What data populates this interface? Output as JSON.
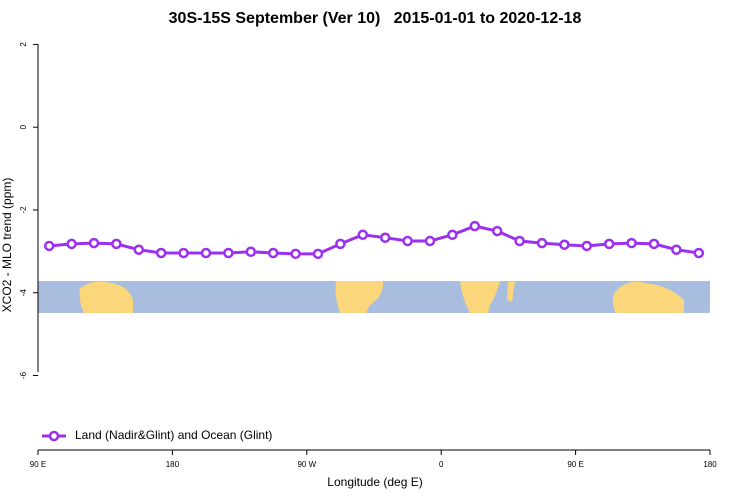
{
  "chart_data": {
    "type": "line",
    "title": "30S-15S September (Ver 10)   2015-01-01 to 2020-12-18",
    "x_label": "Longitude (deg E)",
    "y_label": "XCO2 - MLO trend (ppm)",
    "x": [
      97.5,
      112.5,
      127.5,
      142.5,
      157.5,
      172.5,
      187.5,
      202.5,
      217.5,
      232.5,
      247.5,
      262.5,
      277.5,
      292.5,
      307.5,
      322.5,
      337.5,
      352.5,
      367.5,
      382.5,
      397.5,
      412.5,
      427.5,
      442.5,
      457.5,
      472.5,
      487.5,
      502.5,
      517.5,
      532.5
    ],
    "series": [
      {
        "name": "Land (Nadir&Glint) and Ocean (Glint)",
        "color": "#9b30f0",
        "values": [
          -2.87,
          -2.82,
          -2.8,
          -2.82,
          -2.96,
          -3.04,
          -3.04,
          -3.04,
          -3.04,
          -3.01,
          -3.04,
          -3.06,
          -3.06,
          -2.82,
          -2.6,
          -2.67,
          -2.75,
          -2.75,
          -2.6,
          -2.39,
          -2.51,
          -2.75,
          -2.8,
          -2.84,
          -2.87,
          -2.82,
          -2.8,
          -2.82,
          -2.96,
          -3.04
        ]
      }
    ],
    "xlim": [
      90,
      540
    ],
    "xticks": [
      {
        "value": 90,
        "label": "90 E"
      },
      180,
      {
        "value": 270,
        "label": "90 W"
      },
      {
        "value": 360,
        "label": "0"
      },
      {
        "value": 450,
        "label": "90 E"
      },
      {
        "value": 540,
        "label": "180"
      }
    ],
    "ylim": [
      -7.8,
      2.3
    ],
    "yticks": [
      2,
      0,
      -2,
      -4,
      -6
    ],
    "legend": "bottom-left",
    "grid": false
  }
}
